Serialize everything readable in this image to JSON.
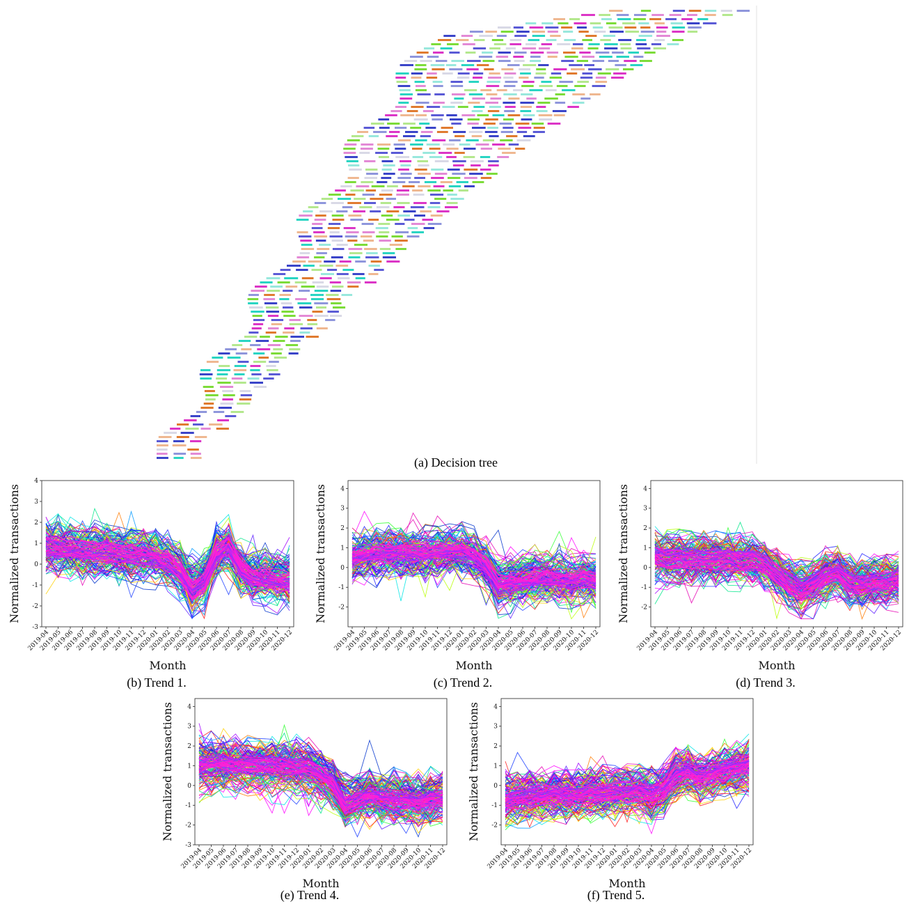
{
  "figure": {
    "captions": {
      "a": "(a) Decision tree",
      "b": "(b) Trend 1.",
      "c": "(c) Trend 2.",
      "d": "(d) Trend 3.",
      "e": "(e) Trend 4.",
      "f": "(f) Trend 5."
    },
    "tree_colors": [
      "#3b45c9",
      "#8f96dc",
      "#dc36c7",
      "#e38ad6",
      "#7ddc3a",
      "#b4e88e",
      "#e07b30",
      "#efb891",
      "#2ad5c3",
      "#99e8dd",
      "#d9d9e6",
      "#5b5bd6"
    ]
  },
  "chart_data": [
    {
      "type": "line",
      "name": "Trend 1.",
      "x": [
        "2019-04",
        "2019-05",
        "2019-06",
        "2019-07",
        "2019-08",
        "2019-09",
        "2019-10",
        "2019-11",
        "2019-12",
        "2020-01",
        "2020-02",
        "2020-03",
        "2020-04",
        "2020-05",
        "2020-06",
        "2020-07",
        "2020-08",
        "2020-09",
        "2020-10",
        "2020-11",
        "2020-12"
      ],
      "xlabel": "Month",
      "ylabel": "Normalized transactions",
      "ylim": [
        -3,
        4
      ],
      "yticks": [
        -3,
        -2,
        -1,
        0,
        1,
        2,
        3,
        4
      ],
      "mean_profile": [
        0.9,
        0.8,
        0.75,
        0.7,
        0.65,
        0.6,
        0.55,
        0.5,
        0.45,
        0.4,
        0.1,
        -0.3,
        -1.2,
        -0.8,
        0.5,
        0.9,
        -0.2,
        -0.6,
        -0.7,
        -0.8,
        -0.8
      ],
      "n_series": 130
    },
    {
      "type": "line",
      "name": "Trend 2.",
      "x": [
        "2019-04",
        "2019-05",
        "2019-06",
        "2019-07",
        "2019-08",
        "2019-09",
        "2019-10",
        "2019-11",
        "2019-12",
        "2020-01",
        "2020-02",
        "2020-03",
        "2020-04",
        "2020-05",
        "2020-06",
        "2020-07",
        "2020-08",
        "2020-09",
        "2020-10",
        "2020-11",
        "2020-12"
      ],
      "xlabel": "Month",
      "ylabel": "Normalized transactions",
      "ylim": [
        -3,
        4.4
      ],
      "yticks": [
        -2,
        -1,
        0,
        1,
        2,
        3,
        4
      ],
      "mean_profile": [
        0.5,
        0.7,
        0.8,
        0.8,
        0.8,
        0.75,
        0.8,
        0.85,
        0.9,
        0.9,
        0.7,
        0.2,
        -0.8,
        -0.7,
        -0.6,
        -0.5,
        -0.5,
        -0.5,
        -0.6,
        -0.5,
        -0.6
      ],
      "n_series": 130
    },
    {
      "type": "line",
      "name": "Trend 3.",
      "x": [
        "2019-04",
        "2019-05",
        "2019-06",
        "2019-07",
        "2019-08",
        "2019-09",
        "2019-10",
        "2019-11",
        "2019-12",
        "2020-01",
        "2020-02",
        "2020-03",
        "2020-04",
        "2020-05",
        "2020-06",
        "2020-07",
        "2020-08",
        "2020-09",
        "2020-10",
        "2020-11",
        "2020-12"
      ],
      "xlabel": "Month",
      "ylabel": "Normalized transactions",
      "ylim": [
        -3,
        4.4
      ],
      "yticks": [
        -2,
        -1,
        0,
        1,
        2,
        3,
        4
      ],
      "mean_profile": [
        0.6,
        0.5,
        0.5,
        0.5,
        0.5,
        0.45,
        0.45,
        0.4,
        0.4,
        0.2,
        -0.3,
        -0.8,
        -1.1,
        -0.9,
        -0.4,
        -0.2,
        -0.8,
        -0.9,
        -0.8,
        -0.7,
        -0.6
      ],
      "n_series": 130
    },
    {
      "type": "line",
      "name": "Trend 4.",
      "x": [
        "2019-04",
        "2019-05",
        "2019-06",
        "2019-07",
        "2019-08",
        "2019-09",
        "2019-10",
        "2019-11",
        "2019-12",
        "2020-01",
        "2020-02",
        "2020-03",
        "2020-04",
        "2020-05",
        "2020-06",
        "2020-07",
        "2020-08",
        "2020-09",
        "2020-10",
        "2020-11",
        "2020-12"
      ],
      "xlabel": "Month",
      "ylabel": "Normalized transactions",
      "ylim": [
        -3,
        4.4
      ],
      "yticks": [
        -3,
        -2,
        -1,
        0,
        1,
        2,
        3,
        4
      ],
      "mean_profile": [
        1.0,
        1.0,
        1.05,
        1.0,
        1.0,
        0.95,
        0.95,
        0.9,
        0.9,
        0.8,
        0.5,
        0.0,
        -1.0,
        -0.8,
        -0.6,
        -0.7,
        -0.8,
        -0.8,
        -0.9,
        -0.8,
        -0.7
      ],
      "n_series": 130
    },
    {
      "type": "line",
      "name": "Trend 5.",
      "x": [
        "2019-04",
        "2019-05",
        "2019-06",
        "2019-07",
        "2019-08",
        "2019-09",
        "2019-10",
        "2019-11",
        "2019-12",
        "2020-01",
        "2020-02",
        "2020-03",
        "2020-04",
        "2020-05",
        "2020-06",
        "2020-07",
        "2020-08",
        "2020-09",
        "2020-10",
        "2020-11",
        "2020-12"
      ],
      "xlabel": "Month",
      "ylabel": "Normalized transactions",
      "ylim": [
        -3,
        4.4
      ],
      "yticks": [
        -2,
        -1,
        0,
        1,
        2,
        3,
        4
      ],
      "mean_profile": [
        -0.8,
        -0.7,
        -0.6,
        -0.55,
        -0.5,
        -0.5,
        -0.5,
        -0.45,
        -0.4,
        -0.4,
        -0.35,
        -0.3,
        -0.5,
        -0.2,
        0.5,
        0.7,
        0.4,
        0.6,
        0.7,
        0.9,
        1.0
      ],
      "n_series": 130
    }
  ]
}
